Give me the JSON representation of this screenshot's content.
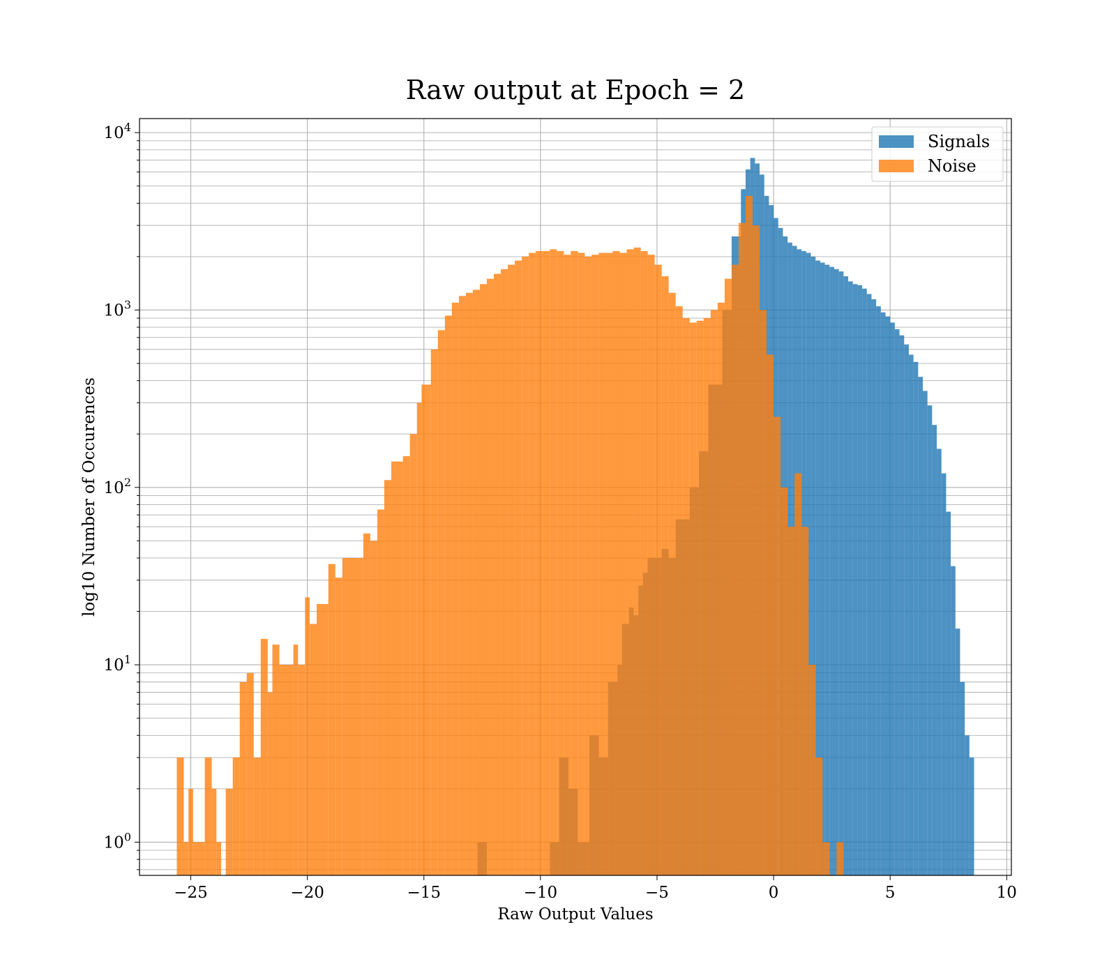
{
  "chart_data": {
    "type": "bar",
    "title": "Raw output at Epoch = 2",
    "xlabel": "Raw Output Values",
    "ylabel": "log10 Number of Occurences",
    "yscale": "log",
    "xlim": [
      -27.2,
      10.2
    ],
    "ylim": [
      0.65,
      12000
    ],
    "x_ticks": [
      {
        "value": -25,
        "label": "−25"
      },
      {
        "value": -20,
        "label": "−20"
      },
      {
        "value": -15,
        "label": "−15"
      },
      {
        "value": -10,
        "label": "−10"
      },
      {
        "value": -5,
        "label": "−5"
      },
      {
        "value": 0,
        "label": "0"
      },
      {
        "value": 5,
        "label": "5"
      },
      {
        "value": 10,
        "label": "10"
      }
    ],
    "y_ticks": [
      {
        "value": 1,
        "base": "10",
        "exp": "0"
      },
      {
        "value": 10,
        "base": "10",
        "exp": "1"
      },
      {
        "value": 100,
        "base": "10",
        "exp": "2"
      },
      {
        "value": 1000,
        "base": "10",
        "exp": "3"
      },
      {
        "value": 10000,
        "base": "10",
        "exp": "4"
      }
    ],
    "grid": true,
    "legend_position": "top-right",
    "series": [
      {
        "name": "Signals",
        "color": "#1f77b4",
        "bins": [
          [
            -12.7,
            -12.3,
            1
          ],
          [
            -9.6,
            -9.2,
            1
          ],
          [
            -9.2,
            -8.8,
            3
          ],
          [
            -8.8,
            -8.4,
            2
          ],
          [
            -8.4,
            -7.9,
            1
          ],
          [
            -7.9,
            -7.5,
            4
          ],
          [
            -7.5,
            -7.1,
            3
          ],
          [
            -7.1,
            -6.7,
            8
          ],
          [
            -6.7,
            -6.5,
            10
          ],
          [
            -6.5,
            -6.2,
            17
          ],
          [
            -6.2,
            -6.0,
            21
          ],
          [
            -6.0,
            -5.8,
            19
          ],
          [
            -5.8,
            -5.6,
            28
          ],
          [
            -5.6,
            -5.4,
            33
          ],
          [
            -5.4,
            -4.8,
            40
          ],
          [
            -4.8,
            -4.5,
            45
          ],
          [
            -4.5,
            -4.2,
            40
          ],
          [
            -4.2,
            -3.6,
            66
          ],
          [
            -3.6,
            -3.2,
            100
          ],
          [
            -3.2,
            -2.8,
            160
          ],
          [
            -2.8,
            -2.2,
            380
          ],
          [
            -2.2,
            -1.8,
            1000
          ],
          [
            -1.8,
            -1.4,
            2600
          ],
          [
            -1.4,
            -1.2,
            4800
          ],
          [
            -1.2,
            -1.0,
            6200
          ],
          [
            -1.0,
            -0.8,
            7200
          ],
          [
            -0.8,
            -0.6,
            6700
          ],
          [
            -0.6,
            -0.4,
            5800
          ],
          [
            -0.4,
            -0.2,
            4400
          ],
          [
            -0.2,
            0.0,
            3900
          ],
          [
            0.0,
            0.2,
            3300
          ],
          [
            0.2,
            0.4,
            2900
          ],
          [
            0.4,
            0.6,
            2600
          ],
          [
            0.6,
            0.8,
            2400
          ],
          [
            0.8,
            1.0,
            2300
          ],
          [
            1.0,
            1.2,
            2200
          ],
          [
            1.2,
            1.4,
            2150
          ],
          [
            1.4,
            1.6,
            2100
          ],
          [
            1.6,
            1.8,
            2000
          ],
          [
            1.8,
            2.0,
            1900
          ],
          [
            2.0,
            2.2,
            1850
          ],
          [
            2.2,
            2.4,
            1800
          ],
          [
            2.4,
            2.6,
            1750
          ],
          [
            2.6,
            2.8,
            1700
          ],
          [
            2.8,
            3.0,
            1650
          ],
          [
            3.0,
            3.2,
            1550
          ],
          [
            3.2,
            3.4,
            1450
          ],
          [
            3.4,
            3.6,
            1400
          ],
          [
            3.6,
            3.8,
            1380
          ],
          [
            3.8,
            4.0,
            1320
          ],
          [
            4.0,
            4.2,
            1230
          ],
          [
            4.2,
            4.4,
            1150
          ],
          [
            4.4,
            4.6,
            1050
          ],
          [
            4.6,
            4.8,
            970
          ],
          [
            4.8,
            5.0,
            920
          ],
          [
            5.0,
            5.2,
            850
          ],
          [
            5.2,
            5.4,
            780
          ],
          [
            5.4,
            5.6,
            720
          ],
          [
            5.6,
            5.8,
            640
          ],
          [
            5.8,
            6.0,
            560
          ],
          [
            6.0,
            6.2,
            510
          ],
          [
            6.2,
            6.4,
            420
          ],
          [
            6.4,
            6.6,
            350
          ],
          [
            6.6,
            6.8,
            290
          ],
          [
            6.8,
            7.0,
            225
          ],
          [
            7.0,
            7.2,
            165
          ],
          [
            7.2,
            7.4,
            120
          ],
          [
            7.4,
            7.6,
            73
          ],
          [
            7.6,
            7.8,
            36
          ],
          [
            7.8,
            8.0,
            16
          ],
          [
            8.0,
            8.2,
            8
          ],
          [
            8.2,
            8.4,
            4
          ],
          [
            8.4,
            8.6,
            3
          ]
        ]
      },
      {
        "name": "Noise",
        "color": "#ff7f0e",
        "bins": [
          [
            -25.6,
            -25.3,
            3
          ],
          [
            -25.3,
            -25.1,
            1
          ],
          [
            -25.1,
            -24.9,
            2
          ],
          [
            -24.9,
            -24.4,
            1
          ],
          [
            -24.4,
            -24.1,
            3
          ],
          [
            -24.1,
            -23.9,
            2
          ],
          [
            -23.9,
            -23.7,
            1
          ],
          [
            -23.5,
            -23.2,
            2
          ],
          [
            -23.2,
            -22.9,
            3
          ],
          [
            -22.9,
            -22.6,
            8
          ],
          [
            -22.6,
            -22.3,
            9
          ],
          [
            -22.3,
            -22.0,
            3
          ],
          [
            -22.0,
            -21.7,
            14
          ],
          [
            -21.7,
            -21.5,
            7
          ],
          [
            -21.5,
            -21.2,
            13
          ],
          [
            -21.2,
            -20.9,
            10
          ],
          [
            -20.9,
            -20.6,
            10
          ],
          [
            -20.6,
            -20.4,
            13
          ],
          [
            -20.4,
            -20.1,
            10
          ],
          [
            -20.1,
            -19.9,
            24
          ],
          [
            -19.9,
            -19.6,
            17
          ],
          [
            -19.6,
            -19.1,
            22
          ],
          [
            -19.1,
            -18.8,
            37
          ],
          [
            -18.8,
            -18.5,
            31
          ],
          [
            -18.5,
            -18.0,
            40
          ],
          [
            -18.0,
            -17.6,
            40
          ],
          [
            -17.6,
            -17.3,
            55
          ],
          [
            -17.3,
            -17.0,
            50
          ],
          [
            -17.0,
            -16.7,
            75
          ],
          [
            -16.7,
            -16.4,
            110
          ],
          [
            -16.4,
            -15.9,
            140
          ],
          [
            -15.9,
            -15.6,
            150
          ],
          [
            -15.6,
            -15.3,
            200
          ],
          [
            -15.3,
            -15.1,
            300
          ],
          [
            -15.1,
            -14.7,
            380
          ],
          [
            -14.7,
            -14.4,
            600
          ],
          [
            -14.4,
            -14.1,
            770
          ],
          [
            -14.1,
            -13.8,
            930
          ],
          [
            -13.8,
            -13.5,
            1100
          ],
          [
            -13.5,
            -13.2,
            1200
          ],
          [
            -13.2,
            -12.9,
            1250
          ],
          [
            -12.9,
            -12.6,
            1300
          ],
          [
            -12.6,
            -12.3,
            1400
          ],
          [
            -12.3,
            -12.0,
            1500
          ],
          [
            -12.0,
            -11.7,
            1600
          ],
          [
            -11.7,
            -11.4,
            1700
          ],
          [
            -11.4,
            -11.1,
            1800
          ],
          [
            -11.1,
            -10.8,
            1900
          ],
          [
            -10.8,
            -10.5,
            2000
          ],
          [
            -10.5,
            -10.2,
            2100
          ],
          [
            -10.2,
            -9.9,
            2150
          ],
          [
            -9.9,
            -9.6,
            2150
          ],
          [
            -9.6,
            -9.3,
            2200
          ],
          [
            -9.3,
            -9.0,
            2150
          ],
          [
            -9.0,
            -8.7,
            2050
          ],
          [
            -8.7,
            -8.4,
            2150
          ],
          [
            -8.4,
            -8.1,
            2100
          ],
          [
            -8.1,
            -7.8,
            2000
          ],
          [
            -7.8,
            -7.5,
            2050
          ],
          [
            -7.5,
            -7.2,
            2100
          ],
          [
            -7.2,
            -6.9,
            2100
          ],
          [
            -6.9,
            -6.6,
            2150
          ],
          [
            -6.6,
            -6.3,
            2100
          ],
          [
            -6.3,
            -6.0,
            2200
          ],
          [
            -6.0,
            -5.7,
            2250
          ],
          [
            -5.7,
            -5.4,
            2150
          ],
          [
            -5.4,
            -5.1,
            2050
          ],
          [
            -5.1,
            -4.8,
            1800
          ],
          [
            -4.8,
            -4.5,
            1550
          ],
          [
            -4.5,
            -4.2,
            1250
          ],
          [
            -4.2,
            -3.9,
            1050
          ],
          [
            -3.9,
            -3.6,
            900
          ],
          [
            -3.6,
            -3.3,
            850
          ],
          [
            -3.3,
            -3.0,
            870
          ],
          [
            -3.0,
            -2.7,
            900
          ],
          [
            -2.7,
            -2.4,
            1000
          ],
          [
            -2.4,
            -2.1,
            1100
          ],
          [
            -2.1,
            -1.8,
            1500
          ],
          [
            -1.8,
            -1.5,
            1800
          ],
          [
            -1.5,
            -1.2,
            3100
          ],
          [
            -1.2,
            -0.9,
            4400
          ],
          [
            -0.9,
            -0.6,
            3000
          ],
          [
            -0.6,
            -0.3,
            1000
          ],
          [
            -0.3,
            0.0,
            560
          ],
          [
            0.0,
            0.3,
            250
          ],
          [
            0.3,
            0.6,
            100
          ],
          [
            0.6,
            0.9,
            60
          ],
          [
            0.9,
            1.2,
            120
          ],
          [
            1.2,
            1.5,
            60
          ],
          [
            1.5,
            1.8,
            10
          ],
          [
            1.8,
            2.1,
            3
          ],
          [
            2.1,
            2.4,
            1
          ],
          [
            2.7,
            3.0,
            1
          ]
        ]
      }
    ]
  }
}
